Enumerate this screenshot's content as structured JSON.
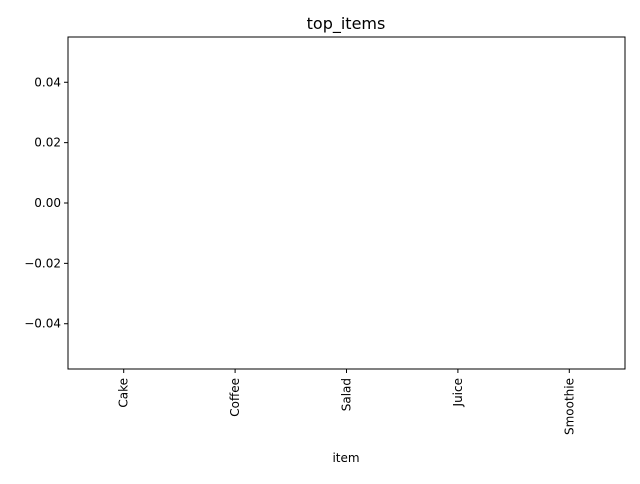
{
  "chart_data": {
    "type": "bar",
    "title": "top_items",
    "xlabel": "item",
    "ylabel": "",
    "categories": [
      "Cake",
      "Coffee",
      "Salad",
      "Juice",
      "Smoothie"
    ],
    "values": [
      0,
      0,
      0,
      0,
      0
    ],
    "ylim": [
      -0.055,
      0.055
    ],
    "yticks": [
      0.04,
      0.02,
      0.0,
      -0.02,
      -0.04
    ],
    "ytick_labels": [
      "0.04",
      "0.02",
      "0.00",
      "−0.02",
      "−0.04"
    ],
    "grid": false,
    "legend": "none"
  },
  "colors": {
    "bar": "#1f77b4",
    "axis": "#000000",
    "background": "#ffffff"
  }
}
